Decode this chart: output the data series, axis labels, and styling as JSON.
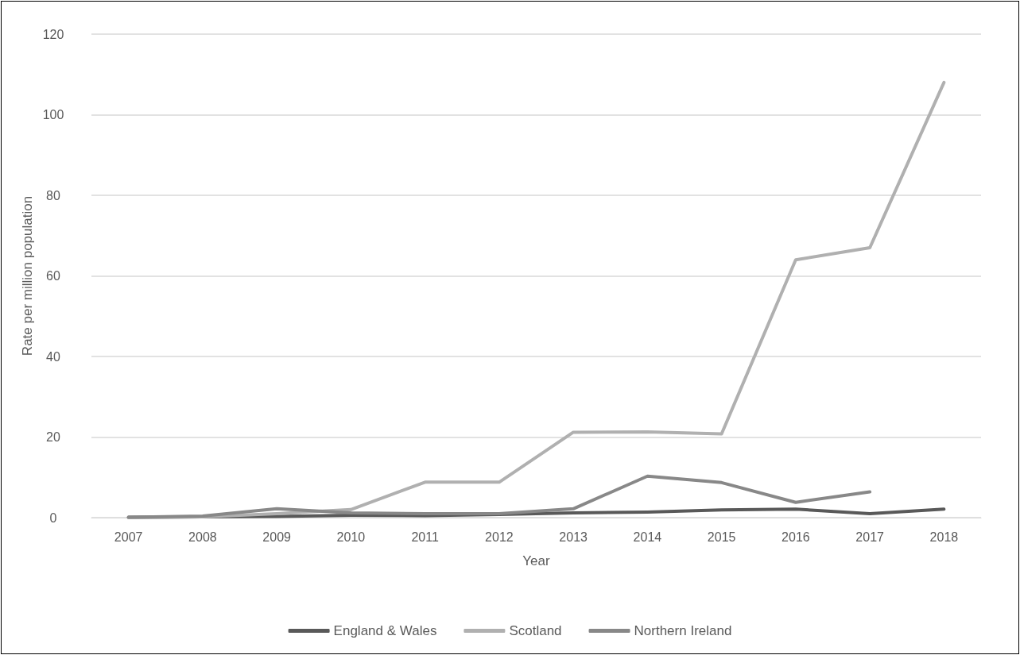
{
  "chart_data": {
    "type": "line",
    "xlabel": "Year",
    "ylabel": "Rate per million population",
    "categories": [
      "2007",
      "2008",
      "2009",
      "2010",
      "2011",
      "2012",
      "2013",
      "2014",
      "2015",
      "2016",
      "2017",
      "2018"
    ],
    "series": [
      {
        "name": "England & Wales",
        "color": "#595959",
        "values": [
          0.1,
          0.2,
          0.3,
          0.6,
          0.5,
          0.8,
          1.2,
          1.4,
          1.9,
          2.1,
          1.0,
          2.1
        ]
      },
      {
        "name": "Scotland",
        "color": "#b0b0b0",
        "values": [
          0,
          0.2,
          1,
          2,
          8.8,
          8.8,
          21.2,
          21.3,
          20.8,
          64,
          67,
          108
        ]
      },
      {
        "name": "Northern Ireland",
        "color": "#888888",
        "values": [
          0.1,
          0.4,
          2.2,
          1.2,
          1.0,
          1.0,
          2.2,
          10.3,
          8.7,
          3.8,
          6.4,
          null
        ]
      }
    ],
    "ylim": [
      0,
      120
    ],
    "yticks": [
      0,
      20,
      40,
      60,
      80,
      100,
      120
    ],
    "grid": "y",
    "legend": "bottom",
    "marker": "none",
    "line_style": "solid"
  }
}
